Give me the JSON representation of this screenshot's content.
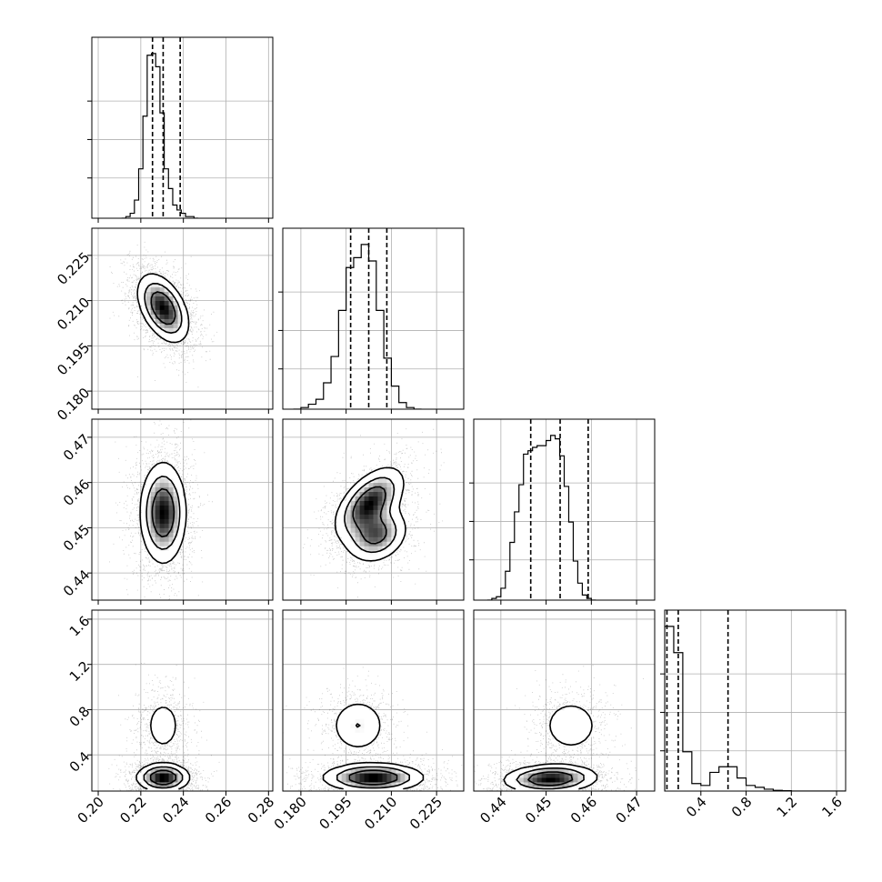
{
  "chart_data": {
    "type": "corner",
    "parameters": 4,
    "grid": true,
    "quantile_lines": "dashed",
    "axes": [
      {
        "range": [
          0.197,
          0.282
        ],
        "ticks": [
          0.2,
          0.22,
          0.24,
          0.26,
          0.28
        ],
        "tick_labels": [
          "0.20",
          "0.22",
          "0.24",
          "0.26",
          "0.28"
        ]
      },
      {
        "range": [
          0.174,
          0.234
        ],
        "ticks": [
          0.18,
          0.195,
          0.21,
          0.225
        ],
        "tick_labels": [
          "0.180",
          "0.195",
          "0.210",
          "0.225"
        ]
      },
      {
        "range": [
          0.434,
          0.474
        ],
        "ticks": [
          0.44,
          0.45,
          0.46,
          0.47
        ],
        "tick_labels": [
          "0.44",
          "0.45",
          "0.46",
          "0.47"
        ]
      },
      {
        "range": [
          0.08,
          1.68
        ],
        "ticks": [
          0.4,
          0.8,
          1.2,
          1.6
        ],
        "tick_labels": [
          "0.4",
          "0.8",
          "1.2",
          "1.6"
        ]
      }
    ],
    "histograms": [
      {
        "param": 0,
        "bin_width": 0.002,
        "bin_edges_start": 0.211,
        "counts": [
          0,
          1,
          3,
          11,
          30,
          62,
          99,
          100,
          92,
          64,
          30,
          18,
          8,
          5,
          3,
          1,
          1,
          0
        ],
        "quantiles": [
          0.2255,
          0.2305,
          0.2385
        ]
      },
      {
        "param": 1,
        "bin_width": 0.0025,
        "bin_edges_start": 0.1775,
        "counts": [
          0,
          1,
          3,
          6,
          16,
          32,
          60,
          86,
          92,
          100,
          90,
          60,
          31,
          14,
          4,
          1,
          0
        ],
        "quantiles": [
          0.1965,
          0.2025,
          0.2085
        ]
      },
      {
        "param": 2,
        "bin_width": 0.001,
        "bin_edges_start": 0.437,
        "counts": [
          0,
          1,
          2,
          7,
          17,
          34,
          52,
          68,
          86,
          88,
          90,
          91,
          91,
          94,
          97,
          95,
          85,
          67,
          46,
          23,
          10,
          3,
          1,
          0
        ],
        "quantiles": [
          0.4466,
          0.4531,
          0.4593
        ]
      },
      {
        "param": 3,
        "bin_width": 0.08,
        "bin_edges_start": 0.08,
        "counts": [
          88,
          74,
          21,
          4,
          3,
          10,
          13,
          13,
          7,
          3,
          2,
          1,
          0.4,
          0.2,
          0,
          0,
          0,
          0,
          0,
          0
        ],
        "quantiles": [
          0.1,
          0.2,
          0.64
        ]
      }
    ],
    "joint_modes": [
      {
        "x": 0,
        "y": 1,
        "modes": [
          {
            "mx": 0.2305,
            "my": 0.2075,
            "sx": 0.0058,
            "sy": 0.0055,
            "rho": -0.45,
            "w": 1.0
          }
        ]
      },
      {
        "x": 0,
        "y": 2,
        "modes": [
          {
            "mx": 0.2305,
            "my": 0.4533,
            "sx": 0.0052,
            "sy": 0.0054,
            "rho": 0.0,
            "w": 1.0
          }
        ]
      },
      {
        "x": 1,
        "y": 2,
        "modes": [
          {
            "mx": 0.2028,
            "my": 0.4555,
            "sx": 0.0055,
            "sy": 0.0038,
            "rho": 0.55,
            "w": 0.6
          },
          {
            "mx": 0.205,
            "my": 0.4485,
            "sx": 0.005,
            "sy": 0.003,
            "rho": 0.2,
            "w": 0.4
          }
        ]
      },
      {
        "x": 0,
        "y": 3,
        "modes": [
          {
            "mx": 0.2305,
            "my": 0.2,
            "sx": 0.006,
            "sy": 0.06,
            "rho": 0.0,
            "w": 0.7
          },
          {
            "mx": 0.2305,
            "my": 0.66,
            "sx": 0.005,
            "sy": 0.14,
            "rho": 0.0,
            "w": 0.3
          }
        ]
      },
      {
        "x": 1,
        "y": 3,
        "modes": [
          {
            "mx": 0.204,
            "my": 0.2,
            "sx": 0.008,
            "sy": 0.06,
            "rho": 0.0,
            "w": 0.7
          },
          {
            "mx": 0.199,
            "my": 0.66,
            "sx": 0.005,
            "sy": 0.13,
            "rho": 0.0,
            "w": 0.3
          }
        ]
      },
      {
        "x": 2,
        "y": 3,
        "modes": [
          {
            "mx": 0.451,
            "my": 0.19,
            "sx": 0.005,
            "sy": 0.06,
            "rho": 0.1,
            "w": 0.7
          },
          {
            "mx": 0.4555,
            "my": 0.66,
            "sx": 0.0035,
            "sy": 0.13,
            "rho": 0.0,
            "w": 0.3
          }
        ]
      }
    ]
  }
}
